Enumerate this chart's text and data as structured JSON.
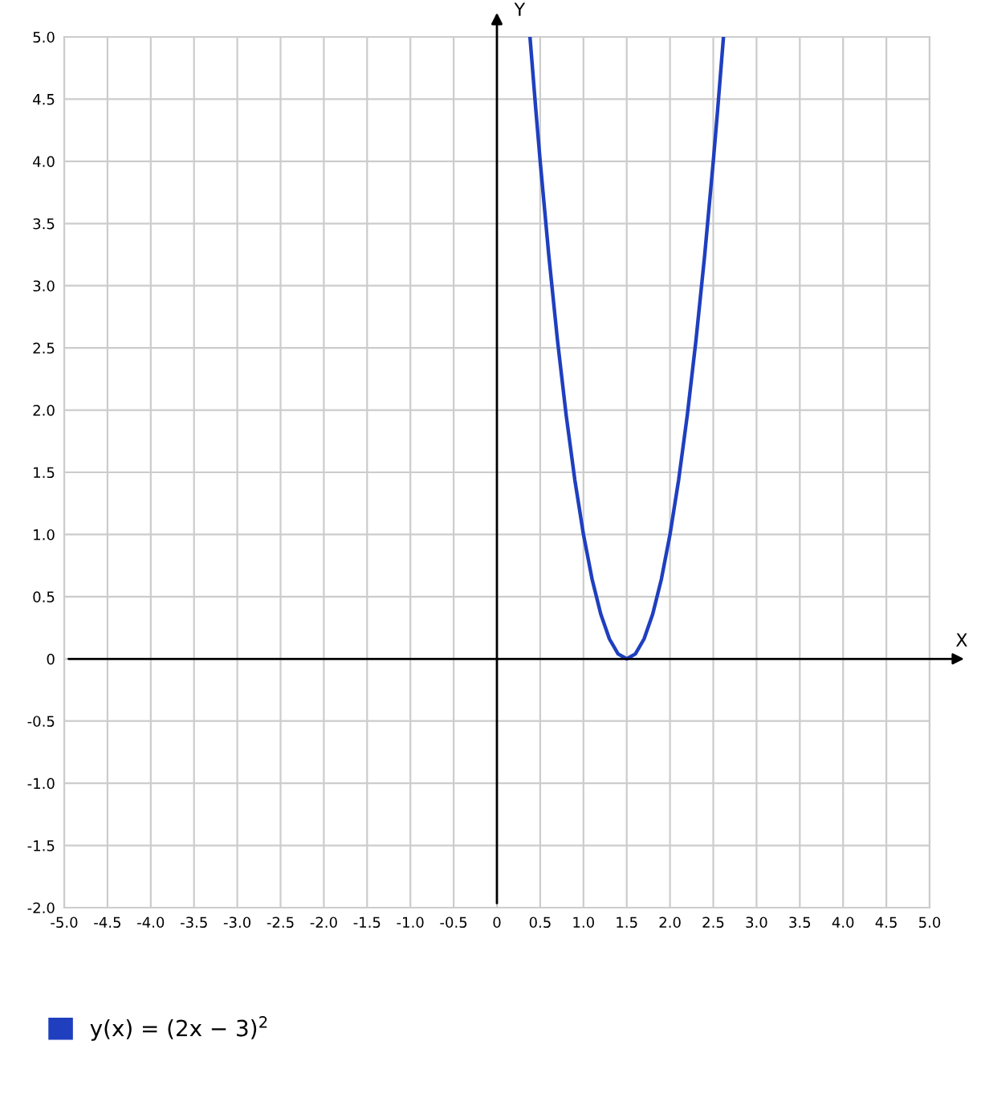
{
  "chart_data": {
    "type": "line",
    "xlabel": "X",
    "ylabel": "Y",
    "series": [
      {
        "name": "y(x) = (2x − 3)$^{2}$",
        "color": "#1f3fbf",
        "x": [
          0.382,
          0.45,
          0.5,
          0.6,
          0.7,
          0.8,
          0.9,
          1.0,
          1.1,
          1.2,
          1.3,
          1.4,
          1.5,
          1.6,
          1.7,
          1.8,
          1.9,
          2.0,
          2.1,
          2.2,
          2.3,
          2.4,
          2.5,
          2.55,
          2.618
        ],
        "values": [
          5.0,
          4.41,
          4.0,
          3.24,
          2.56,
          1.96,
          1.44,
          1.0,
          0.64,
          0.36,
          0.16,
          0.04,
          0,
          0.04,
          0.16,
          0.36,
          0.64,
          1.0,
          1.44,
          1.96,
          2.56,
          3.24,
          4.0,
          4.41,
          5.0
        ]
      }
    ],
    "xlim": [
      -5,
      5
    ],
    "ylim": [
      -2,
      5
    ],
    "xticks": [
      {
        "value": -5,
        "label": "-5.0"
      },
      {
        "value": -4.5,
        "label": "-4.5"
      },
      {
        "value": -4,
        "label": "-4.0"
      },
      {
        "value": -3.5,
        "label": "-3.5"
      },
      {
        "value": -3,
        "label": "-3.0"
      },
      {
        "value": -2.5,
        "label": "-2.5"
      },
      {
        "value": -2,
        "label": "-2.0"
      },
      {
        "value": -1.5,
        "label": "-1.5"
      },
      {
        "value": -1,
        "label": "-1.0"
      },
      {
        "value": -0.5,
        "label": "-0.5"
      },
      0,
      0.5,
      {
        "value": 1,
        "label": "1.0"
      },
      1.5,
      {
        "value": 2,
        "label": "2.0"
      },
      2.5,
      {
        "value": 3,
        "label": "3.0"
      },
      3.5,
      {
        "value": 4,
        "label": "4.0"
      },
      4.5,
      {
        "value": 5,
        "label": "5.0"
      }
    ],
    "yticks": [
      {
        "value": -2,
        "label": "-2.0"
      },
      {
        "value": -1.5,
        "label": "-1.5"
      },
      {
        "value": -1,
        "label": "-1.0"
      },
      {
        "value": -0.5,
        "label": "-0.5"
      },
      0,
      0.5,
      {
        "value": 1,
        "label": "1.0"
      },
      1.5,
      {
        "value": 2,
        "label": "2.0"
      },
      2.5,
      {
        "value": 3,
        "label": "3.0"
      },
      3.5,
      {
        "value": 4,
        "label": "4.0"
      },
      4.5,
      {
        "value": 5,
        "label": "5.0"
      }
    ],
    "grid": true,
    "legend": "bottom left",
    "line_style": "solid",
    "marker": "none"
  }
}
